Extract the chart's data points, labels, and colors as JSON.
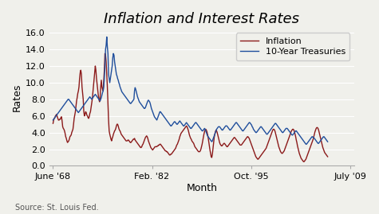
{
  "title": "Inflation and Interest Rates",
  "xlabel": "Month",
  "ylabel": "Rates",
  "source_text": "Source: St. Louis Fed.",
  "legend_labels": [
    "Inflation",
    "10-Year Treasuries"
  ],
  "line_colors": [
    "#8b1a1a",
    "#1f4e9c"
  ],
  "xtick_labels": [
    "June '68",
    "Feb. '82",
    "Oct. '95",
    "July '09"
  ],
  "xtick_positions": [
    1968.417,
    1982.083,
    1995.75,
    2009.5
  ],
  "ytick_values": [
    0.0,
    2.0,
    4.0,
    6.0,
    8.0,
    10.0,
    12.0,
    14.0,
    16.0
  ],
  "ylim": [
    0.0,
    16.5
  ],
  "xlim": [
    1967.9,
    2010.0
  ],
  "background_color": "#f0f0eb",
  "title_fontsize": 13,
  "axis_fontsize": 9,
  "tick_fontsize": 8,
  "source_fontsize": 7,
  "inflation": [
    5.1,
    5.5,
    5.7,
    5.8,
    6.0,
    6.1,
    6.2,
    5.9,
    5.7,
    5.5,
    5.5,
    5.6,
    5.6,
    5.8,
    5.9,
    5.4,
    4.7,
    4.5,
    4.4,
    4.2,
    3.9,
    3.5,
    3.3,
    3.0,
    2.8,
    2.9,
    3.0,
    3.2,
    3.5,
    3.6,
    3.7,
    4.0,
    4.2,
    4.4,
    5.0,
    5.7,
    6.1,
    6.5,
    7.2,
    7.8,
    8.2,
    8.7,
    9.0,
    9.5,
    10.5,
    11.2,
    11.5,
    11.0,
    9.5,
    8.8,
    8.0,
    6.5,
    6.0,
    6.2,
    6.5,
    6.4,
    6.1,
    6.0,
    5.8,
    5.7,
    5.9,
    6.3,
    6.5,
    7.0,
    7.5,
    8.0,
    8.8,
    9.5,
    10.5,
    11.3,
    12.0,
    11.5,
    10.5,
    9.8,
    9.0,
    8.5,
    8.0,
    7.7,
    8.2,
    9.5,
    10.3,
    9.5,
    9.2,
    9.0,
    10.3,
    11.5,
    13.5,
    13.3,
    12.5,
    11.0,
    9.5,
    7.5,
    5.5,
    4.2,
    3.8,
    3.5,
    3.2,
    3.0,
    3.3,
    3.5,
    3.8,
    4.0,
    4.2,
    4.3,
    4.5,
    4.8,
    5.0,
    5.0,
    4.8,
    4.5,
    4.3,
    4.2,
    4.0,
    3.8,
    3.7,
    3.6,
    3.5,
    3.4,
    3.3,
    3.2,
    3.1,
    3.0,
    3.0,
    3.0,
    3.1,
    3.1,
    3.0,
    2.9,
    2.8,
    2.8,
    2.9,
    3.0,
    3.1,
    3.2,
    3.2,
    3.3,
    3.1,
    3.0,
    2.9,
    2.8,
    2.7,
    2.6,
    2.5,
    2.4,
    2.3,
    2.2,
    2.2,
    2.3,
    2.5,
    2.6,
    2.8,
    3.0,
    3.2,
    3.4,
    3.5,
    3.6,
    3.5,
    3.3,
    3.0,
    2.8,
    2.6,
    2.4,
    2.2,
    2.1,
    2.0,
    1.9,
    2.0,
    2.1,
    2.2,
    2.3,
    2.3,
    2.3,
    2.3,
    2.4,
    2.4,
    2.5,
    2.5,
    2.6,
    2.6,
    2.5,
    2.4,
    2.3,
    2.2,
    2.1,
    2.0,
    1.9,
    1.8,
    1.8,
    1.7,
    1.7,
    1.6,
    1.5,
    1.4,
    1.3,
    1.3,
    1.4,
    1.4,
    1.5,
    1.6,
    1.7,
    1.8,
    1.9,
    2.0,
    2.1,
    2.3,
    2.5,
    2.6,
    2.8,
    3.0,
    3.2,
    3.5,
    3.7,
    3.9,
    4.0,
    4.1,
    4.2,
    4.3,
    4.4,
    4.5,
    4.6,
    4.7,
    4.8,
    4.7,
    4.5,
    4.3,
    4.0,
    3.7,
    3.5,
    3.3,
    3.2,
    3.0,
    2.9,
    2.8,
    2.7,
    2.5,
    2.3,
    2.2,
    2.1,
    2.0,
    1.9,
    1.8,
    1.7,
    1.7,
    1.7,
    1.8,
    2.0,
    2.3,
    2.6,
    3.0,
    3.4,
    3.8,
    4.1,
    4.3,
    4.4,
    4.3,
    4.1,
    3.8,
    3.4,
    2.9,
    2.4,
    1.9,
    1.5,
    1.1,
    1.0,
    1.4,
    2.1,
    2.8,
    3.4,
    3.8,
    4.1,
    4.3,
    4.2,
    4.0,
    3.7,
    3.4,
    3.1,
    2.8,
    2.6,
    2.5,
    2.4,
    2.4,
    2.5,
    2.6,
    2.7,
    2.7,
    2.6,
    2.5,
    2.4,
    2.3,
    2.3,
    2.4,
    2.5,
    2.6,
    2.7,
    2.8,
    2.9,
    3.0,
    3.1,
    3.2,
    3.3,
    3.4,
    3.4,
    3.3,
    3.2,
    3.1,
    3.0,
    2.9,
    2.8,
    2.7,
    2.6,
    2.5,
    2.5,
    2.5,
    2.6,
    2.7,
    2.8,
    2.9,
    3.0,
    3.1,
    3.2,
    3.3,
    3.4,
    3.5,
    3.5,
    3.4,
    3.3,
    3.1,
    2.9,
    2.7,
    2.5,
    2.3,
    2.1,
    1.9,
    1.7,
    1.5,
    1.3,
    1.1,
    1.0,
    0.9,
    0.8,
    0.8,
    0.9,
    1.0,
    1.1,
    1.2,
    1.3,
    1.4,
    1.5,
    1.6,
    1.7,
    1.8,
    1.9,
    2.0,
    2.1,
    2.3,
    2.5,
    2.7,
    2.9,
    3.1,
    3.3,
    3.5,
    3.7,
    3.9,
    4.1,
    4.3,
    4.4,
    4.4,
    4.3,
    4.1,
    3.8,
    3.5,
    3.2,
    2.9,
    2.6,
    2.3,
    2.1,
    1.9,
    1.7,
    1.6,
    1.5,
    1.5,
    1.6,
    1.7,
    1.8,
    2.0,
    2.2,
    2.4,
    2.6,
    2.8,
    3.0,
    3.2,
    3.4,
    3.6,
    3.8,
    4.0,
    4.2,
    4.3,
    4.4,
    4.4,
    4.3,
    4.1,
    3.8,
    3.5,
    3.1,
    2.8,
    2.4,
    2.1,
    1.8,
    1.5,
    1.3,
    1.1,
    0.9,
    0.8,
    0.7,
    0.6,
    0.5,
    0.5,
    0.6,
    0.7,
    0.8,
    1.0,
    1.2,
    1.4,
    1.6,
    1.8,
    2.0,
    2.2,
    2.4,
    2.6,
    2.8,
    3.0,
    3.2,
    3.5,
    3.8,
    4.1,
    4.3,
    4.5,
    4.6,
    4.6,
    4.5,
    4.3,
    4.0,
    3.7,
    3.4,
    3.1,
    2.8,
    2.5,
    2.2,
    2.0,
    1.8,
    1.6,
    1.5,
    1.4,
    1.3,
    1.2,
    1.1
  ],
  "treasuries": [
    5.5,
    5.6,
    5.7,
    5.8,
    5.9,
    6.0,
    6.1,
    6.2,
    6.3,
    6.4,
    6.5,
    6.6,
    6.7,
    6.8,
    6.9,
    7.0,
    7.1,
    7.2,
    7.3,
    7.4,
    7.5,
    7.6,
    7.7,
    7.8,
    7.9,
    8.0,
    8.0,
    7.9,
    7.8,
    7.7,
    7.6,
    7.5,
    7.4,
    7.3,
    7.2,
    7.1,
    7.0,
    6.9,
    6.8,
    6.7,
    6.6,
    6.5,
    6.4,
    6.5,
    6.6,
    6.7,
    6.8,
    6.9,
    7.0,
    7.1,
    7.2,
    7.3,
    7.4,
    7.5,
    7.6,
    7.7,
    7.8,
    7.9,
    8.0,
    8.1,
    8.2,
    8.3,
    8.2,
    8.1,
    8.0,
    8.1,
    8.2,
    8.3,
    8.4,
    8.5,
    8.6,
    8.5,
    8.4,
    8.3,
    8.2,
    8.1,
    8.0,
    7.9,
    7.8,
    8.0,
    8.2,
    8.5,
    8.8,
    9.0,
    9.5,
    10.5,
    12.0,
    14.0,
    14.5,
    15.5,
    14.3,
    13.5,
    11.0,
    10.5,
    10.0,
    10.5,
    11.0,
    11.5,
    12.0,
    13.0,
    13.5,
    13.3,
    12.5,
    12.0,
    11.5,
    11.0,
    10.8,
    10.5,
    10.3,
    10.0,
    9.8,
    9.5,
    9.3,
    9.1,
    8.9,
    8.8,
    8.7,
    8.6,
    8.5,
    8.4,
    8.3,
    8.2,
    8.1,
    8.0,
    7.9,
    7.8,
    7.7,
    7.6,
    7.5,
    7.5,
    7.6,
    7.7,
    7.8,
    7.9,
    8.0,
    9.0,
    9.4,
    9.2,
    8.9,
    8.6,
    8.3,
    8.1,
    7.9,
    7.7,
    7.6,
    7.5,
    7.4,
    7.3,
    7.2,
    7.1,
    7.0,
    6.9,
    6.9,
    7.0,
    7.2,
    7.4,
    7.6,
    7.8,
    7.9,
    7.8,
    7.7,
    7.5,
    7.2,
    6.9,
    6.7,
    6.5,
    6.3,
    6.1,
    5.9,
    5.8,
    5.7,
    5.6,
    5.5,
    5.7,
    5.9,
    6.1,
    6.3,
    6.5,
    6.5,
    6.4,
    6.3,
    6.2,
    6.1,
    6.0,
    5.9,
    5.8,
    5.7,
    5.6,
    5.5,
    5.4,
    5.3,
    5.2,
    5.1,
    5.0,
    4.9,
    4.8,
    4.8,
    4.9,
    5.0,
    5.1,
    5.2,
    5.3,
    5.3,
    5.2,
    5.1,
    5.0,
    5.0,
    5.1,
    5.2,
    5.3,
    5.4,
    5.3,
    5.2,
    5.1,
    5.0,
    4.9,
    4.8,
    4.8,
    4.9,
    5.0,
    5.1,
    5.2,
    5.1,
    5.0,
    4.9,
    4.8,
    4.7,
    4.6,
    4.5,
    4.5,
    4.6,
    4.7,
    4.8,
    4.9,
    5.0,
    5.1,
    5.2,
    5.2,
    5.1,
    5.0,
    4.9,
    4.8,
    4.7,
    4.6,
    4.5,
    4.4,
    4.3,
    4.2,
    4.2,
    4.3,
    4.4,
    4.5,
    4.4,
    4.2,
    4.0,
    3.8,
    3.6,
    3.5,
    3.4,
    3.3,
    3.2,
    3.1,
    3.0,
    2.9,
    3.0,
    3.2,
    3.4,
    3.6,
    3.8,
    4.0,
    4.2,
    4.4,
    4.5,
    4.6,
    4.7,
    4.7,
    4.7,
    4.6,
    4.5,
    4.4,
    4.3,
    4.3,
    4.4,
    4.5,
    4.6,
    4.7,
    4.8,
    4.8,
    4.8,
    4.7,
    4.6,
    4.5,
    4.4,
    4.3,
    4.3,
    4.4,
    4.5,
    4.6,
    4.7,
    4.8,
    4.9,
    5.0,
    5.1,
    5.2,
    5.2,
    5.1,
    5.0,
    4.9,
    4.8,
    4.7,
    4.6,
    4.5,
    4.4,
    4.3,
    4.2,
    4.2,
    4.3,
    4.4,
    4.5,
    4.6,
    4.7,
    4.8,
    4.9,
    5.0,
    5.1,
    5.2,
    5.2,
    5.1,
    5.0,
    4.9,
    4.7,
    4.6,
    4.4,
    4.3,
    4.2,
    4.1,
    4.0,
    4.0,
    4.1,
    4.2,
    4.3,
    4.4,
    4.5,
    4.6,
    4.7,
    4.7,
    4.6,
    4.5,
    4.4,
    4.3,
    4.2,
    4.1,
    4.0,
    3.9,
    3.8,
    3.8,
    3.9,
    4.0,
    4.1,
    4.2,
    4.3,
    4.4,
    4.5,
    4.6,
    4.7,
    4.8,
    4.9,
    5.0,
    5.1,
    5.1,
    5.0,
    4.9,
    4.8,
    4.7,
    4.6,
    4.5,
    4.4,
    4.3,
    4.2,
    4.1,
    4.0,
    4.0,
    4.1,
    4.2,
    4.3,
    4.4,
    4.5,
    4.5,
    4.5,
    4.4,
    4.3,
    4.2,
    4.1,
    4.0,
    3.9,
    3.8,
    3.7,
    3.7,
    3.8,
    3.9,
    4.0,
    4.1,
    4.2,
    4.2,
    4.1,
    4.0,
    3.9,
    3.8,
    3.7,
    3.6,
    3.5,
    3.4,
    3.3,
    3.2,
    3.1,
    3.0,
    2.9,
    2.8,
    2.7,
    2.6,
    2.6,
    2.7,
    2.8,
    2.9,
    3.0,
    3.1,
    3.2,
    3.3,
    3.4,
    3.5,
    3.5,
    3.4,
    3.4,
    3.3,
    3.2,
    3.1,
    3.0,
    2.9,
    2.8,
    2.7,
    2.7,
    2.8,
    2.9,
    3.0,
    3.1,
    3.2,
    3.3,
    3.4,
    3.5,
    3.5,
    3.4,
    3.3,
    3.2,
    3.1,
    3.0,
    2.9
  ]
}
